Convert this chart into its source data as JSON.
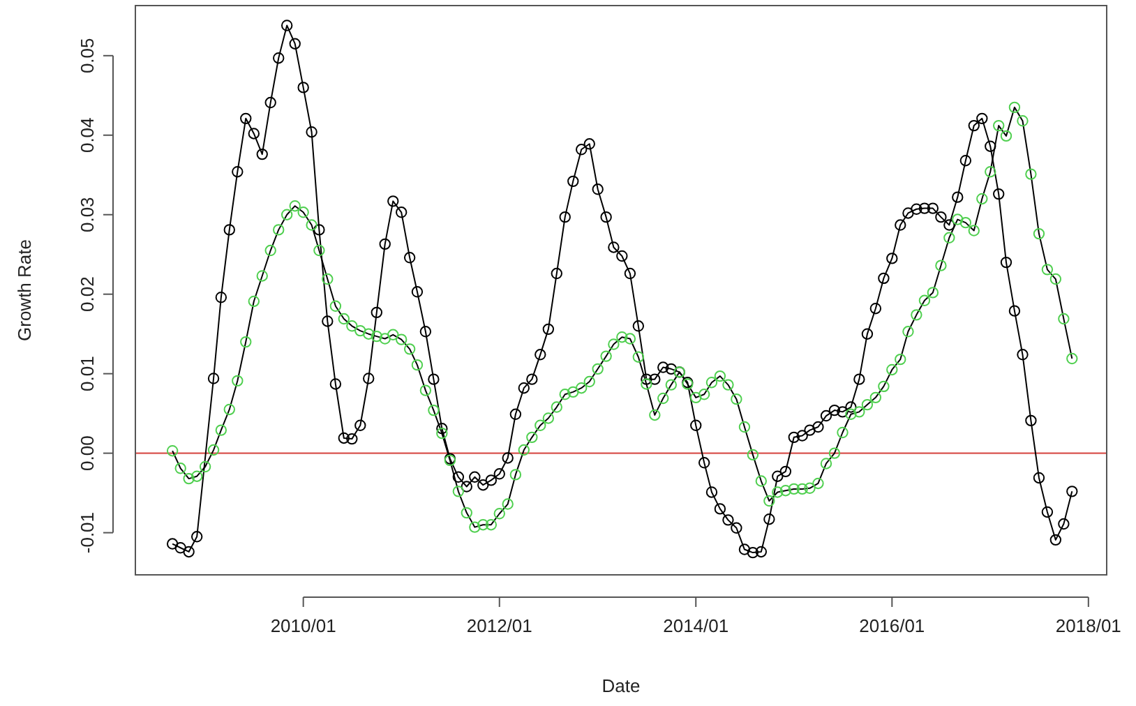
{
  "chart_data": {
    "type": "line",
    "xlabel": "Date",
    "ylabel": "Growth Rate",
    "marker": "circle",
    "grid": false,
    "xlim": [
      "2008-04-16",
      "2018-03-10"
    ],
    "xticks": [
      {
        "value": "2010-01",
        "label": "2010/01"
      },
      {
        "value": "2012-01",
        "label": "2012/01"
      },
      {
        "value": "2014-01",
        "label": "2014/01"
      },
      {
        "value": "2016-01",
        "label": "2016/01"
      },
      {
        "value": "2018-01",
        "label": "2018/01"
      }
    ],
    "ylim": [
      -0.0153,
      0.0563
    ],
    "yticks": [
      -0.01,
      {
        "value": 0,
        "label": "0.00"
      },
      0.01,
      0.02,
      0.03,
      0.04,
      0.05
    ],
    "ref_lines": [
      {
        "axis": "y",
        "value": 0,
        "color": "#d9534f"
      }
    ],
    "series": [
      {
        "color": "#000000",
        "x": [
          "2008-09",
          "2008-10",
          "2008-11",
          "2008-12",
          "2009-02",
          "2009-03",
          "2009-04",
          "2009-05",
          "2009-06",
          "2009-07",
          "2009-08",
          "2009-09",
          "2009-10",
          "2009-11",
          "2009-12",
          "2010-01",
          "2010-02",
          "2010-03",
          "2010-04",
          "2010-05",
          "2010-06",
          "2010-07",
          "2010-08",
          "2010-09",
          "2010-10",
          "2010-11",
          "2010-12",
          "2011-01",
          "2011-02",
          "2011-03",
          "2011-04",
          "2011-05",
          "2011-06",
          "2011-07",
          "2011-08",
          "2011-09",
          "2011-10",
          "2011-11",
          "2011-12",
          "2012-01",
          "2012-02",
          "2012-03",
          "2012-04",
          "2012-05",
          "2012-06",
          "2012-07",
          "2012-08",
          "2012-09",
          "2012-10",
          "2012-11",
          "2012-12",
          "2013-01",
          "2013-02",
          "2013-03",
          "2013-04",
          "2013-05",
          "2013-06",
          "2013-07",
          "2013-08",
          "2013-09",
          "2013-10",
          "2013-11",
          "2013-12",
          "2014-01",
          "2014-02",
          "2014-03",
          "2014-04",
          "2014-05",
          "2014-06",
          "2014-07",
          "2014-08",
          "2014-09",
          "2014-10",
          "2014-11",
          "2014-12",
          "2015-01",
          "2015-02",
          "2015-03",
          "2015-04",
          "2015-05",
          "2015-06",
          "2015-07",
          "2015-08",
          "2015-09",
          "2015-10",
          "2015-11",
          "2015-12",
          "2016-01",
          "2016-02",
          "2016-03",
          "2016-04",
          "2016-05",
          "2016-06",
          "2016-07",
          "2016-08",
          "2016-09",
          "2016-10",
          "2016-11",
          "2016-12",
          "2017-01",
          "2017-02",
          "2017-03",
          "2017-04",
          "2017-05",
          "2017-06",
          "2017-07",
          "2017-08",
          "2017-09",
          "2017-10",
          "2017-11"
        ],
        "values": [
          -0.0114,
          -0.0119,
          -0.0124,
          -0.0105,
          0.0094,
          0.0196,
          0.0281,
          0.0354,
          0.0421,
          0.0402,
          0.0376,
          0.0441,
          0.0497,
          0.0538,
          0.0515,
          0.046,
          0.0404,
          0.0281,
          0.0166,
          0.0087,
          0.0019,
          0.0018,
          0.0035,
          0.0094,
          0.0177,
          0.0263,
          0.0317,
          0.0303,
          0.0246,
          0.0203,
          0.0153,
          0.0093,
          0.0031,
          -0.0007,
          -0.003,
          -0.0042,
          -0.003,
          -0.004,
          -0.0034,
          -0.0026,
          -0.0006,
          0.0049,
          0.0082,
          0.0093,
          0.0124,
          0.0156,
          0.0226,
          0.0297,
          0.0342,
          0.0382,
          0.0389,
          0.0332,
          0.0297,
          0.0259,
          0.0248,
          0.0226,
          0.016,
          0.0093,
          0.0093,
          0.0108,
          0.0106,
          0.0102,
          0.0089,
          0.0035,
          -0.0012,
          -0.0049,
          -0.007,
          -0.0084,
          -0.0094,
          -0.0121,
          -0.0125,
          -0.0124,
          -0.0083,
          -0.0029,
          -0.0023,
          0.002,
          0.0022,
          0.0029,
          0.0033,
          0.0047,
          0.0054,
          0.0052,
          0.0058,
          0.0093,
          0.015,
          0.0182,
          0.022,
          0.0245,
          0.0287,
          0.0302,
          0.0307,
          0.0308,
          0.0308,
          0.0297,
          0.0287,
          0.0322,
          0.0368,
          0.0412,
          0.0421,
          0.0386,
          0.0326,
          0.024,
          0.0179,
          0.0124,
          0.0041,
          -0.0031,
          -0.0074,
          -0.0109,
          -0.0089,
          -0.0048
        ]
      },
      {
        "color": "#4fcf4f",
        "x": [
          "2008-09",
          "2008-10",
          "2008-11",
          "2008-12",
          "2009-01",
          "2009-02",
          "2009-03",
          "2009-04",
          "2009-05",
          "2009-06",
          "2009-07",
          "2009-08",
          "2009-09",
          "2009-10",
          "2009-11",
          "2009-12",
          "2010-01",
          "2010-02",
          "2010-03",
          "2010-04",
          "2010-05",
          "2010-06",
          "2010-07",
          "2010-08",
          "2010-09",
          "2010-10",
          "2010-11",
          "2010-12",
          "2011-01",
          "2011-02",
          "2011-03",
          "2011-04",
          "2011-05",
          "2011-06",
          "2011-07",
          "2011-08",
          "2011-09",
          "2011-10",
          "2011-11",
          "2011-12",
          "2012-01",
          "2012-02",
          "2012-03",
          "2012-04",
          "2012-05",
          "2012-06",
          "2012-07",
          "2012-08",
          "2012-09",
          "2012-10",
          "2012-11",
          "2012-12",
          "2013-01",
          "2013-02",
          "2013-03",
          "2013-04",
          "2013-05",
          "2013-06",
          "2013-07",
          "2013-08",
          "2013-09",
          "2013-10",
          "2013-11",
          "2013-12",
          "2014-01",
          "2014-02",
          "2014-03",
          "2014-04",
          "2014-05",
          "2014-06",
          "2014-07",
          "2014-08",
          "2014-09",
          "2014-10",
          "2014-11",
          "2014-12",
          "2015-01",
          "2015-02",
          "2015-03",
          "2015-04",
          "2015-05",
          "2015-06",
          "2015-07",
          "2015-08",
          "2015-09",
          "2015-10",
          "2015-11",
          "2015-12",
          "2016-01",
          "2016-02",
          "2016-03",
          "2016-04",
          "2016-05",
          "2016-06",
          "2016-07",
          "2016-08",
          "2016-09",
          "2016-10",
          "2016-11",
          "2016-12",
          "2017-01",
          "2017-02",
          "2017-03",
          "2017-04",
          "2017-05",
          "2017-06",
          "2017-07",
          "2017-08",
          "2017-09",
          "2017-10",
          "2017-11"
        ],
        "values": [
          0.0003,
          -0.0019,
          -0.0032,
          -0.0029,
          -0.0017,
          0.0004,
          0.0029,
          0.0055,
          0.0091,
          0.014,
          0.0191,
          0.0223,
          0.0255,
          0.0281,
          0.03,
          0.0311,
          0.0303,
          0.0287,
          0.0255,
          0.0219,
          0.0185,
          0.0169,
          0.016,
          0.0154,
          0.015,
          0.0147,
          0.0144,
          0.0149,
          0.0143,
          0.0131,
          0.0111,
          0.0079,
          0.0054,
          0.0025,
          -0.0009,
          -0.0048,
          -0.0075,
          -0.0093,
          -0.009,
          -0.009,
          -0.0076,
          -0.0064,
          -0.0027,
          0.0004,
          0.002,
          0.0035,
          0.0044,
          0.0058,
          0.0074,
          0.0077,
          0.0082,
          0.009,
          0.0106,
          0.0122,
          0.0137,
          0.0146,
          0.0144,
          0.0121,
          0.0087,
          0.0048,
          0.0069,
          0.0086,
          0.0102,
          0.0087,
          0.007,
          0.0074,
          0.0089,
          0.0097,
          0.0086,
          0.0068,
          0.0033,
          -0.0002,
          -0.0035,
          -0.006,
          -0.0049,
          -0.0047,
          -0.0045,
          -0.0045,
          -0.0044,
          -0.0038,
          -0.0013,
          0,
          0.0026,
          0.0049,
          0.0052,
          0.0061,
          0.007,
          0.0084,
          0.0105,
          0.0118,
          0.0153,
          0.0174,
          0.0192,
          0.0202,
          0.0236,
          0.0271,
          0.0294,
          0.029,
          0.028,
          0.032,
          0.0354,
          0.0412,
          0.0399,
          0.0435,
          0.0418,
          0.0351,
          0.0276,
          0.0231,
          0.0219,
          0.0169,
          0.0119
        ]
      }
    ]
  }
}
